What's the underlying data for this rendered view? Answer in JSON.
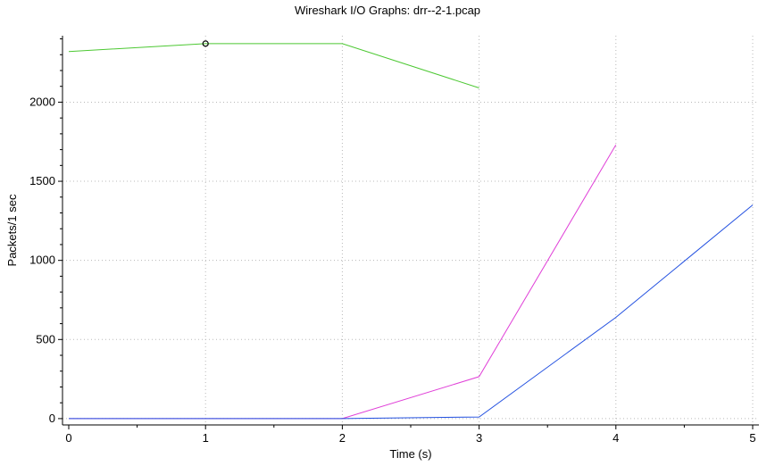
{
  "chart_data": {
    "type": "line",
    "title": "Wireshark I/O Graphs: drr--2-1.pcap",
    "xlabel": "Time (s)",
    "ylabel": "Packets/1 sec",
    "xlim": [
      0,
      5
    ],
    "ylim": [
      -40,
      2420
    ],
    "xticks": [
      0,
      1,
      2,
      3,
      4,
      5
    ],
    "yticks": [
      0,
      500,
      1000,
      1500,
      2000
    ],
    "grid": true,
    "marker": {
      "x": 1,
      "y": 2370
    },
    "series": [
      {
        "color": "#4cc832",
        "x": [
          0,
          1,
          2,
          3
        ],
        "values": [
          2320,
          2370,
          2370,
          2090
        ]
      },
      {
        "color": "#e040d8",
        "x": [
          0,
          1,
          2,
          3,
          4
        ],
        "values": [
          0,
          0,
          0,
          265,
          1730
        ]
      },
      {
        "color": "#2250e0",
        "x": [
          0,
          1,
          2,
          3,
          4,
          5
        ],
        "values": [
          0,
          0,
          0,
          10,
          640,
          1350
        ]
      }
    ]
  }
}
